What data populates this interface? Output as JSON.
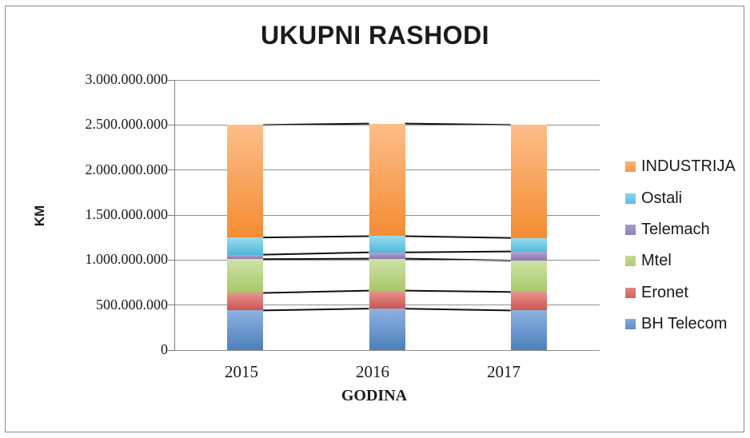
{
  "chart_data": {
    "type": "bar",
    "stacked": true,
    "series_lines": true,
    "title": "UKUPNI RASHODI",
    "xlabel": "GODINA",
    "ylabel": "KM",
    "categories": [
      "2015",
      "2016",
      "2017"
    ],
    "series": [
      {
        "name": "BH Telecom",
        "values": [
          440000000,
          460000000,
          440000000
        ],
        "color_top": "#8FB1DF",
        "color_bottom": "#4D80BD",
        "legend_color_top": "#85A8D8",
        "legend_color_bottom": "#5E8CC6"
      },
      {
        "name": "Eronet",
        "values": [
          195000000,
          200000000,
          205000000
        ],
        "color_top": "#E89490",
        "color_bottom": "#CC5551",
        "legend_color_top": "#E08883",
        "legend_color_bottom": "#D2625E"
      },
      {
        "name": "Mtel",
        "values": [
          375000000,
          355000000,
          350000000
        ],
        "color_top": "#CFE2A8",
        "color_bottom": "#A6C868",
        "legend_color_top": "#C6DC97",
        "legend_color_bottom": "#ADCC73"
      },
      {
        "name": "Telemach",
        "values": [
          50000000,
          70000000,
          100000000
        ],
        "color_top": "#B2A5CF",
        "color_bottom": "#8A77AF",
        "legend_color_top": "#A99BC8",
        "legend_color_bottom": "#9280B6"
      },
      {
        "name": "Ostali",
        "values": [
          190000000,
          180000000,
          150000000
        ],
        "color_top": "#97DCF0",
        "color_bottom": "#50B8DA",
        "legend_color_top": "#89D4EB",
        "legend_color_bottom": "#5FBDDD"
      },
      {
        "name": "INDUSTRIJA",
        "values": [
          1250000000,
          1250000000,
          1255000000
        ],
        "color_top": "#FCBE8A",
        "color_bottom": "#F58C33",
        "legend_color_top": "#FBB278",
        "legend_color_bottom": "#F79646"
      }
    ],
    "totals": [
      2500000000,
      2515000000,
      2500000000
    ],
    "legend_order": [
      "INDUSTRIJA",
      "Ostali",
      "Telemach",
      "Mtel",
      "Eronet",
      "BH Telecom"
    ],
    "legend_position": "right",
    "grid": true,
    "ylim": [
      0,
      3000000000
    ],
    "ytick_step": 500000000,
    "y_tick_labels": [
      "3.000.000.000",
      "2.500.000.000",
      "2.000.000.000",
      "1.500.000.000",
      "1.000.000.000",
      "500.000.000",
      "0"
    ]
  }
}
